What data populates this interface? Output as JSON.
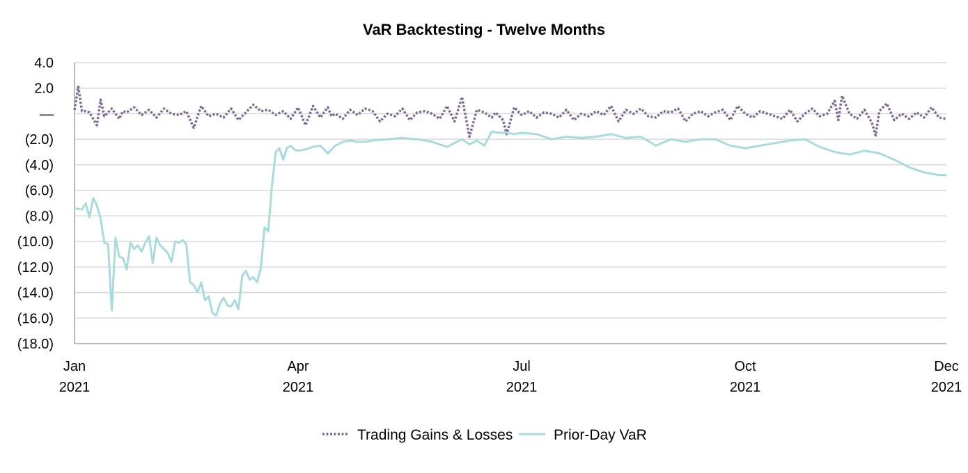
{
  "chart_data": {
    "type": "line",
    "title": "VaR Backtesting - Twelve Months",
    "xlabel": "",
    "ylabel": "",
    "ylim": [
      -18,
      4
    ],
    "y_ticks": [
      {
        "value": 4,
        "label": "4.0"
      },
      {
        "value": 2,
        "label": "2.0"
      },
      {
        "value": 0,
        "label": "—"
      },
      {
        "value": -2,
        "label": "(2.0)"
      },
      {
        "value": -4,
        "label": "(4.0)"
      },
      {
        "value": -6,
        "label": "(6.0)"
      },
      {
        "value": -8,
        "label": "(8.0)"
      },
      {
        "value": -10,
        "label": "(10.0)"
      },
      {
        "value": -12,
        "label": "(12.0)"
      },
      {
        "value": -14,
        "label": "(14.0)"
      },
      {
        "value": -16,
        "label": "(16.0)"
      },
      {
        "value": -18,
        "label": "(18.0)"
      }
    ],
    "x_range": [
      0,
      11.7
    ],
    "x_ticks": [
      {
        "value": 0,
        "month": "Jan",
        "year": "2021"
      },
      {
        "value": 3,
        "month": "Apr",
        "year": "2021"
      },
      {
        "value": 6,
        "month": "Jul",
        "year": "2021"
      },
      {
        "value": 9,
        "month": "Oct",
        "year": "2021"
      },
      {
        "value": 11.7,
        "month": "Dec",
        "year": "2021"
      }
    ],
    "grid": true,
    "legend_position": "bottom-center",
    "series": [
      {
        "name": "Trading Gains & Losses",
        "color": "#7b6a93",
        "style": "dotted",
        "x": [
          0,
          0.05,
          0.1,
          0.15,
          0.2,
          0.3,
          0.35,
          0.4,
          0.5,
          0.6,
          0.65,
          0.7,
          0.8,
          0.9,
          1.0,
          1.1,
          1.2,
          1.3,
          1.4,
          1.5,
          1.6,
          1.7,
          1.8,
          1.9,
          2.0,
          2.1,
          2.2,
          2.3,
          2.4,
          2.5,
          2.6,
          2.7,
          2.8,
          2.9,
          3.0,
          3.1,
          3.2,
          3.3,
          3.4,
          3.45,
          3.5,
          3.6,
          3.7,
          3.8,
          3.9,
          4.0,
          4.1,
          4.2,
          4.3,
          4.4,
          4.5,
          4.6,
          4.7,
          4.8,
          4.9,
          5.0,
          5.1,
          5.2,
          5.3,
          5.4,
          5.5,
          5.6,
          5.65,
          5.7,
          5.75,
          5.8,
          5.9,
          6.0,
          6.1,
          6.2,
          6.3,
          6.4,
          6.5,
          6.6,
          6.7,
          6.8,
          6.9,
          7.0,
          7.1,
          7.2,
          7.3,
          7.4,
          7.5,
          7.6,
          7.7,
          7.8,
          7.9,
          8.0,
          8.1,
          8.2,
          8.3,
          8.4,
          8.5,
          8.6,
          8.7,
          8.8,
          8.9,
          9.0,
          9.1,
          9.2,
          9.3,
          9.4,
          9.5,
          9.6,
          9.7,
          9.8,
          9.9,
          10.0,
          10.1,
          10.2,
          10.25,
          10.3,
          10.4,
          10.5,
          10.6,
          10.7,
          10.75,
          10.8,
          10.9,
          11.0,
          11.1,
          11.2,
          11.3,
          11.4,
          11.5,
          11.6,
          11.7
        ],
        "values": [
          0.3,
          2.1,
          0.2,
          0.2,
          0.1,
          -0.9,
          1.1,
          -0.2,
          0.4,
          -0.4,
          0.2,
          0.1,
          0.5,
          -0.1,
          0.3,
          -0.3,
          0.4,
          0.0,
          -0.1,
          0.2,
          -1.1,
          0.6,
          -0.2,
          0.0,
          -0.3,
          0.4,
          -0.5,
          0.1,
          0.7,
          0.2,
          0.3,
          -0.1,
          0.2,
          -0.4,
          0.5,
          -0.9,
          0.6,
          -0.3,
          0.5,
          -0.2,
          0.0,
          -0.4,
          0.3,
          -0.1,
          0.4,
          0.2,
          -0.6,
          0.0,
          -0.2,
          0.4,
          -0.5,
          0.1,
          0.2,
          0.0,
          -0.4,
          0.6,
          -0.6,
          1.3,
          -1.8,
          0.3,
          0.1,
          -0.3,
          0.1,
          -0.2,
          -0.5,
          -1.6,
          0.5,
          -0.1,
          0.2,
          -0.3,
          0.1,
          0.0,
          -0.3,
          0.3,
          -0.5,
          0.0,
          -0.2,
          0.2,
          -0.1,
          0.6,
          -0.6,
          0.3,
          0.0,
          0.4,
          -0.2,
          -0.3,
          0.2,
          0.1,
          0.4,
          -0.6,
          0.0,
          0.2,
          -0.2,
          0.1,
          0.3,
          -0.5,
          0.6,
          0.0,
          -0.3,
          0.2,
          0.0,
          -0.2,
          -0.4,
          0.3,
          -0.6,
          0.0,
          0.4,
          -0.2,
          0.0,
          1.0,
          -0.5,
          1.4,
          0.0,
          -0.4,
          0.3,
          -0.7,
          -1.7,
          0.2,
          0.8,
          -0.5,
          0.0,
          -0.4,
          0.1,
          -0.3,
          0.5,
          -0.3,
          -0.4
        ]
      },
      {
        "name": "Prior-Day VaR",
        "color": "#a9dbdc",
        "style": "solid",
        "x": [
          0,
          0.1,
          0.15,
          0.2,
          0.25,
          0.3,
          0.35,
          0.4,
          0.45,
          0.5,
          0.55,
          0.6,
          0.65,
          0.7,
          0.75,
          0.8,
          0.85,
          0.9,
          0.95,
          1.0,
          1.05,
          1.1,
          1.15,
          1.2,
          1.25,
          1.3,
          1.35,
          1.4,
          1.45,
          1.5,
          1.55,
          1.6,
          1.65,
          1.7,
          1.75,
          1.8,
          1.85,
          1.9,
          1.95,
          2.0,
          2.05,
          2.1,
          2.15,
          2.2,
          2.25,
          2.3,
          2.35,
          2.4,
          2.45,
          2.5,
          2.55,
          2.6,
          2.65,
          2.7,
          2.75,
          2.8,
          2.85,
          2.9,
          2.95,
          3.0,
          3.1,
          3.2,
          3.3,
          3.4,
          3.5,
          3.6,
          3.7,
          3.8,
          3.9,
          4.0,
          4.2,
          4.4,
          4.6,
          4.8,
          5.0,
          5.2,
          5.3,
          5.4,
          5.5,
          5.6,
          5.7,
          5.8,
          5.9,
          6.0,
          6.2,
          6.4,
          6.6,
          6.8,
          7.0,
          7.2,
          7.4,
          7.6,
          7.8,
          8.0,
          8.2,
          8.4,
          8.6,
          8.8,
          9.0,
          9.2,
          9.4,
          9.6,
          9.8,
          10.0,
          10.2,
          10.4,
          10.6,
          10.8,
          11.0,
          11.2,
          11.4,
          11.6,
          11.7
        ],
        "values": [
          -7.4,
          -7.5,
          -7.0,
          -8.1,
          -6.6,
          -7.2,
          -8.2,
          -10.1,
          -10.2,
          -15.4,
          -9.7,
          -11.2,
          -11.3,
          -12.2,
          -10.1,
          -10.6,
          -10.3,
          -10.8,
          -10.1,
          -9.6,
          -11.7,
          -9.7,
          -10.3,
          -10.6,
          -10.9,
          -11.6,
          -10.0,
          -10.1,
          -9.9,
          -10.2,
          -13.2,
          -13.4,
          -14.0,
          -13.2,
          -14.6,
          -14.3,
          -15.6,
          -15.8,
          -14.9,
          -14.4,
          -15.0,
          -15.1,
          -14.6,
          -15.3,
          -12.7,
          -12.3,
          -13.0,
          -12.8,
          -13.2,
          -12.1,
          -8.9,
          -9.2,
          -5.6,
          -3.0,
          -2.7,
          -3.6,
          -2.7,
          -2.5,
          -2.8,
          -2.9,
          -2.8,
          -2.6,
          -2.5,
          -3.1,
          -2.5,
          -2.2,
          -2.1,
          -2.2,
          -2.2,
          -2.1,
          -2.0,
          -1.9,
          -2.0,
          -2.2,
          -2.6,
          -2.0,
          -2.4,
          -2.1,
          -2.5,
          -1.4,
          -1.5,
          -1.5,
          -1.6,
          -1.5,
          -1.6,
          -2.0,
          -1.8,
          -1.9,
          -1.8,
          -1.6,
          -1.9,
          -1.8,
          -2.5,
          -2.0,
          -2.2,
          -2.0,
          -2.0,
          -2.5,
          -2.7,
          -2.5,
          -2.3,
          -2.1,
          -2.0,
          -2.6,
          -3.0,
          -3.2,
          -2.9,
          -3.1,
          -3.6,
          -4.2,
          -4.6,
          -4.8,
          -4.8
        ]
      }
    ]
  }
}
